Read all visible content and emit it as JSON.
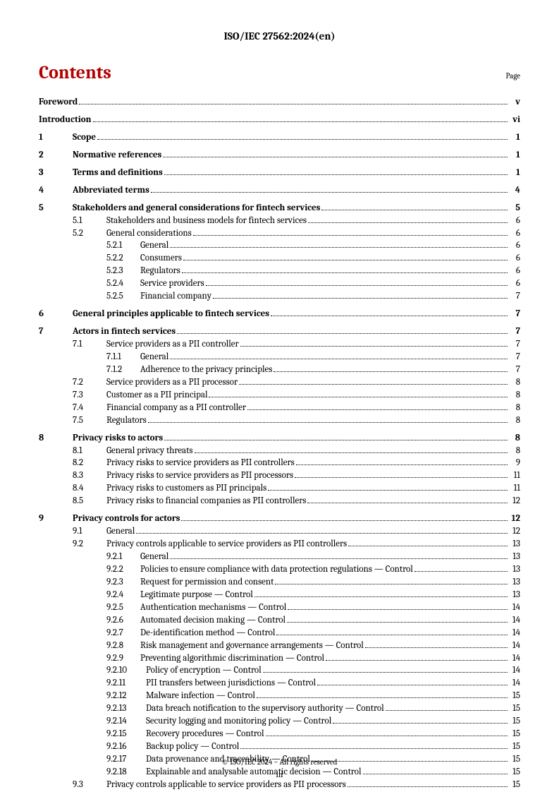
{
  "header": "ISO/IEC 27562:2024(en)",
  "contentsTitle": "Contents",
  "pageLabel": "Page",
  "footer": "© ISO/IEC 2024 – All rights reserved",
  "pageNumber": "iii",
  "colors": {
    "accent": "#b30000",
    "text": "#000000",
    "bg": "#ffffff"
  },
  "toc": [
    {
      "type": "group",
      "rows": [
        {
          "level": 0,
          "bold": true,
          "title": "Foreword",
          "page": "v"
        }
      ]
    },
    {
      "type": "group",
      "rows": [
        {
          "level": 0,
          "bold": true,
          "title": "Introduction",
          "page": "vi"
        }
      ]
    },
    {
      "type": "group",
      "rows": [
        {
          "level": 1,
          "bold": true,
          "num": "1",
          "title": "Scope",
          "page": "1"
        }
      ]
    },
    {
      "type": "group",
      "rows": [
        {
          "level": 1,
          "bold": true,
          "num": "2",
          "title": "Normative references",
          "page": "1"
        }
      ]
    },
    {
      "type": "group",
      "rows": [
        {
          "level": 1,
          "bold": true,
          "num": "3",
          "title": "Terms and definitions",
          "page": "1"
        }
      ]
    },
    {
      "type": "group",
      "rows": [
        {
          "level": 1,
          "bold": true,
          "num": "4",
          "title": "Abbreviated terms",
          "page": "4"
        }
      ]
    },
    {
      "type": "group",
      "rows": [
        {
          "level": 1,
          "bold": true,
          "num": "5",
          "title": "Stakeholders and general considerations for fintech services",
          "page": "5"
        },
        {
          "level": 2,
          "num": "5.1",
          "title": "Stakeholders and business models for fintech services",
          "page": "6"
        },
        {
          "level": 2,
          "num": "5.2",
          "title": "General considerations",
          "page": "6"
        },
        {
          "level": 3,
          "num": "5.2.1",
          "title": "General",
          "page": "6"
        },
        {
          "level": 3,
          "num": "5.2.2",
          "title": "Consumers",
          "page": "6"
        },
        {
          "level": 3,
          "num": "5.2.3",
          "title": "Regulators",
          "page": "6"
        },
        {
          "level": 3,
          "num": "5.2.4",
          "title": "Service providers",
          "page": "6"
        },
        {
          "level": 3,
          "num": "5.2.5",
          "title": "Financial company",
          "page": "7"
        }
      ]
    },
    {
      "type": "group",
      "rows": [
        {
          "level": 1,
          "bold": true,
          "num": "6",
          "title": "General principles applicable to fintech services",
          "page": "7"
        }
      ]
    },
    {
      "type": "group",
      "rows": [
        {
          "level": 1,
          "bold": true,
          "num": "7",
          "title": "Actors in fintech services",
          "page": "7"
        },
        {
          "level": 2,
          "num": "7.1",
          "title": "Service providers as a PII controller",
          "page": "7"
        },
        {
          "level": 3,
          "num": "7.1.1",
          "title": "General",
          "page": "7"
        },
        {
          "level": 3,
          "num": "7.1.2",
          "title": "Adherence to the privacy principles",
          "page": "7"
        },
        {
          "level": 2,
          "num": "7.2",
          "title": "Service providers as a PII processor",
          "page": "8"
        },
        {
          "level": 2,
          "num": "7.3",
          "title": "Customer as a PII principal",
          "page": "8"
        },
        {
          "level": 2,
          "num": "7.4",
          "title": "Financial company as a PII controller",
          "page": "8"
        },
        {
          "level": 2,
          "num": "7.5",
          "title": "Regulators",
          "page": "8"
        }
      ]
    },
    {
      "type": "group",
      "rows": [
        {
          "level": 1,
          "bold": true,
          "num": "8",
          "title": "Privacy risks to actors",
          "page": "8"
        },
        {
          "level": 2,
          "num": "8.1",
          "title": "General privacy threats",
          "page": "8"
        },
        {
          "level": 2,
          "num": "8.2",
          "title": "Privacy risks to service providers as PII controllers",
          "page": "9"
        },
        {
          "level": 2,
          "num": "8.3",
          "title": "Privacy risks to service providers as PII processors",
          "page": "11"
        },
        {
          "level": 2,
          "num": "8.4",
          "title": "Privacy risks to customers as PII principals",
          "page": "11"
        },
        {
          "level": 2,
          "num": "8.5",
          "title": "Privacy risks to financial companies as PII controllers",
          "page": "12"
        }
      ]
    },
    {
      "type": "group",
      "rows": [
        {
          "level": 1,
          "bold": true,
          "num": "9",
          "title": "Privacy controls for actors",
          "page": "12"
        },
        {
          "level": 2,
          "num": "9.1",
          "title": "General",
          "page": "12"
        },
        {
          "level": 2,
          "num": "9.2",
          "title": "Privacy controls applicable to service providers as PII controllers",
          "page": "13"
        },
        {
          "level": 3,
          "num": "9.2.1",
          "title": "General",
          "page": "13"
        },
        {
          "level": 3,
          "num": "9.2.2",
          "title": "Policies to ensure compliance with data protection regulations — Control",
          "page": "13"
        },
        {
          "level": 3,
          "num": "9.2.3",
          "title": "Request for permission and consent",
          "page": "13"
        },
        {
          "level": 3,
          "num": "9.2.4",
          "title": "Legitimate purpose — Control",
          "page": "13"
        },
        {
          "level": 3,
          "num": "9.2.5",
          "title": "Authentication mechanisms — Control",
          "page": "14"
        },
        {
          "level": 3,
          "num": "9.2.6",
          "title": "Automated decision making — Control",
          "page": "14"
        },
        {
          "level": 3,
          "num": "9.2.7",
          "title": "De-identification method — Control",
          "page": "14"
        },
        {
          "level": 3,
          "num": "9.2.8",
          "title": "Risk management and governance arrangements — Control",
          "page": "14"
        },
        {
          "level": 3,
          "num": "9.2.9",
          "title": "Preventing algorithmic discrimination — Control",
          "page": "14"
        },
        {
          "level": "3w",
          "num": "9.2.10",
          "title": "Policy of encryption — Control",
          "page": "14"
        },
        {
          "level": "3w",
          "num": "9.2.11",
          "title": "PII transfers between jurisdictions — Control",
          "page": "14"
        },
        {
          "level": "3w",
          "num": "9.2.12",
          "title": "Malware infection — Control",
          "page": "15"
        },
        {
          "level": "3w",
          "num": "9.2.13",
          "title": "Data breach notification to the supervisory authority — Control",
          "page": "15"
        },
        {
          "level": "3w",
          "num": "9.2.14",
          "title": "Security logging and monitoring policy — Control",
          "page": "15"
        },
        {
          "level": "3w",
          "num": "9.2.15",
          "title": "Recovery procedures — Control",
          "page": "15"
        },
        {
          "level": "3w",
          "num": "9.2.16",
          "title": "Backup policy — Control",
          "page": "15"
        },
        {
          "level": "3w",
          "num": "9.2.17",
          "title": "Data provenance and traceability — Control",
          "page": "15"
        },
        {
          "level": "3w",
          "num": "9.2.18",
          "title": "Explainable and analysable automatic decision — Control",
          "page": "15"
        },
        {
          "level": 2,
          "num": "9.3",
          "title": "Privacy controls applicable to service providers as PII processors",
          "page": "15"
        }
      ]
    }
  ]
}
